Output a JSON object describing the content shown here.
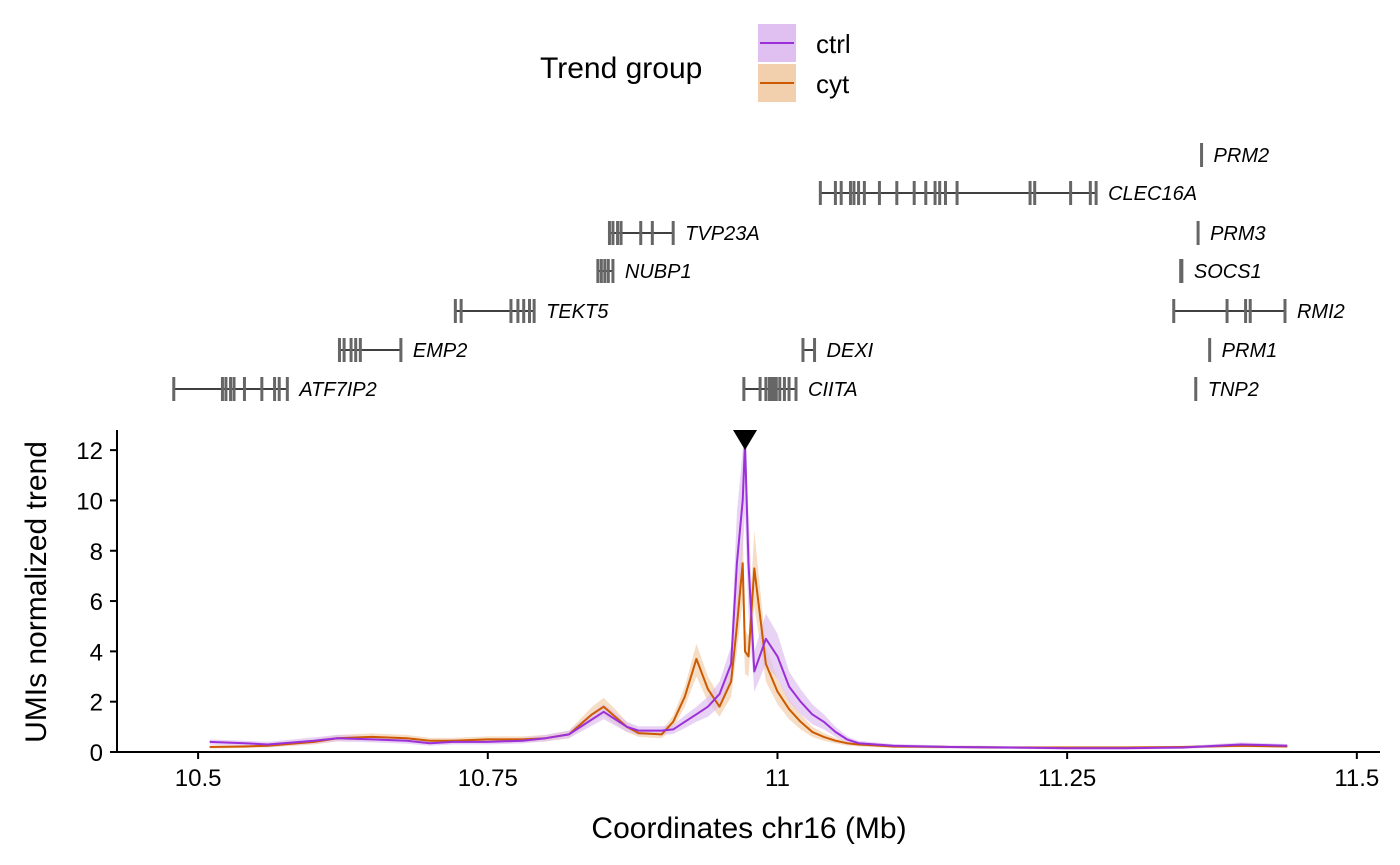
{
  "colors": {
    "ctrl_line": "#9b30d9",
    "ctrl_band": "#e0c0f0",
    "cyt_line": "#cc5a00",
    "cyt_band": "#f2cfad",
    "gene": "#666666",
    "axis": "#000000"
  },
  "legend": {
    "title": "Trend group",
    "entries": [
      {
        "label": "ctrl",
        "key": "ctrl"
      },
      {
        "label": "cyt",
        "key": "cyt"
      }
    ]
  },
  "chart_data": {
    "type": "line",
    "title": "",
    "xlabel": "Coordinates chr16 (Mb)",
    "ylabel": "UMIs normalized trend",
    "xlim": [
      10.43,
      11.52
    ],
    "ylim": [
      0,
      12.8
    ],
    "xticks": [
      10.5,
      10.75,
      11,
      11.25,
      11.5
    ],
    "xtick_labels": [
      "10.5",
      "10.75",
      "11",
      "11.25",
      "11.5"
    ],
    "yticks": [
      0,
      2,
      4,
      6,
      8,
      10,
      12
    ],
    "ytick_labels": [
      "0",
      "2",
      "4",
      "6",
      "8",
      "10",
      "12"
    ],
    "marker": {
      "x": 10.972,
      "shape": "down-triangle"
    },
    "series": [
      {
        "name": "ctrl",
        "key": "ctrl",
        "x": [
          10.51,
          10.54,
          10.56,
          10.6,
          10.62,
          10.65,
          10.68,
          10.7,
          10.72,
          10.75,
          10.78,
          10.8,
          10.82,
          10.84,
          10.85,
          10.86,
          10.87,
          10.88,
          10.9,
          10.91,
          10.92,
          10.93,
          10.94,
          10.95,
          10.96,
          10.965,
          10.97,
          10.972,
          10.975,
          10.98,
          10.99,
          11.0,
          11.01,
          11.02,
          11.03,
          11.04,
          11.05,
          11.06,
          11.07,
          11.1,
          11.15,
          11.2,
          11.25,
          11.3,
          11.35,
          11.4,
          11.44
        ],
        "values": [
          0.4,
          0.35,
          0.3,
          0.45,
          0.55,
          0.5,
          0.45,
          0.35,
          0.4,
          0.4,
          0.45,
          0.55,
          0.7,
          1.3,
          1.6,
          1.3,
          1.0,
          0.85,
          0.85,
          0.9,
          1.2,
          1.5,
          1.8,
          2.3,
          3.5,
          7.5,
          10.0,
          12.3,
          7.5,
          3.2,
          4.5,
          3.8,
          2.6,
          2.0,
          1.5,
          1.2,
          0.8,
          0.5,
          0.35,
          0.25,
          0.2,
          0.18,
          0.15,
          0.15,
          0.18,
          0.3,
          0.25
        ],
        "lower": [
          0.3,
          0.25,
          0.2,
          0.33,
          0.42,
          0.38,
          0.33,
          0.25,
          0.3,
          0.3,
          0.34,
          0.42,
          0.55,
          1.05,
          1.3,
          1.05,
          0.8,
          0.68,
          0.68,
          0.72,
          0.95,
          1.2,
          1.4,
          1.8,
          2.8,
          5.5,
          8.0,
          9.5,
          5.5,
          2.4,
          3.5,
          2.9,
          2.0,
          1.5,
          1.1,
          0.9,
          0.6,
          0.38,
          0.26,
          0.18,
          0.14,
          0.12,
          0.1,
          0.1,
          0.12,
          0.22,
          0.18
        ],
        "upper": [
          0.5,
          0.45,
          0.4,
          0.58,
          0.68,
          0.62,
          0.57,
          0.45,
          0.5,
          0.5,
          0.56,
          0.68,
          0.85,
          1.55,
          1.9,
          1.55,
          1.2,
          1.02,
          1.02,
          1.08,
          1.45,
          1.8,
          2.2,
          2.8,
          4.2,
          9.5,
          12.0,
          12.5,
          9.5,
          4.0,
          5.5,
          4.7,
          3.2,
          2.5,
          1.9,
          1.5,
          1.0,
          0.62,
          0.44,
          0.32,
          0.26,
          0.24,
          0.2,
          0.2,
          0.24,
          0.38,
          0.32
        ]
      },
      {
        "name": "cyt",
        "key": "cyt",
        "x": [
          10.51,
          10.54,
          10.56,
          10.6,
          10.62,
          10.65,
          10.68,
          10.7,
          10.72,
          10.75,
          10.78,
          10.8,
          10.82,
          10.84,
          10.85,
          10.86,
          10.87,
          10.88,
          10.9,
          10.91,
          10.92,
          10.93,
          10.94,
          10.95,
          10.96,
          10.965,
          10.97,
          10.972,
          10.975,
          10.98,
          10.99,
          11.0,
          11.01,
          11.02,
          11.03,
          11.04,
          11.05,
          11.06,
          11.07,
          11.1,
          11.15,
          11.2,
          11.25,
          11.3,
          11.35,
          11.4,
          11.44
        ],
        "values": [
          0.2,
          0.22,
          0.25,
          0.4,
          0.55,
          0.6,
          0.55,
          0.45,
          0.45,
          0.5,
          0.5,
          0.55,
          0.7,
          1.5,
          1.8,
          1.4,
          1.0,
          0.75,
          0.7,
          1.2,
          2.2,
          3.7,
          2.5,
          1.8,
          2.8,
          5.0,
          7.5,
          4.0,
          3.8,
          7.3,
          3.5,
          2.4,
          1.7,
          1.2,
          0.8,
          0.6,
          0.45,
          0.35,
          0.3,
          0.22,
          0.2,
          0.18,
          0.18,
          0.18,
          0.2,
          0.25,
          0.22
        ],
        "lower": [
          0.14,
          0.16,
          0.18,
          0.3,
          0.42,
          0.46,
          0.42,
          0.34,
          0.34,
          0.38,
          0.38,
          0.42,
          0.55,
          1.2,
          1.45,
          1.1,
          0.8,
          0.6,
          0.55,
          0.95,
          1.8,
          3.0,
          2.0,
          1.4,
          2.2,
          4.0,
          6.0,
          3.1,
          3.0,
          5.8,
          2.8,
          1.9,
          1.3,
          0.9,
          0.6,
          0.45,
          0.34,
          0.26,
          0.22,
          0.16,
          0.14,
          0.13,
          0.13,
          0.13,
          0.15,
          0.19,
          0.17
        ],
        "upper": [
          0.26,
          0.28,
          0.32,
          0.5,
          0.68,
          0.74,
          0.68,
          0.56,
          0.56,
          0.62,
          0.62,
          0.68,
          0.85,
          1.8,
          2.15,
          1.7,
          1.2,
          0.9,
          0.85,
          1.45,
          2.6,
          4.3,
          3.0,
          2.2,
          3.4,
          6.0,
          9.0,
          4.9,
          4.6,
          8.8,
          4.2,
          2.9,
          2.1,
          1.5,
          1.0,
          0.75,
          0.56,
          0.44,
          0.38,
          0.28,
          0.26,
          0.23,
          0.23,
          0.23,
          0.25,
          0.31,
          0.27
        ]
      }
    ],
    "genes": [
      {
        "name": "PRM2",
        "row": 0,
        "start": 11.366,
        "end": 11.366,
        "exons": [
          11.366
        ]
      },
      {
        "name": "CLEC16A",
        "row": 1,
        "start": 11.037,
        "end": 11.275,
        "exons": [
          11.037,
          11.05,
          11.055,
          11.063,
          11.066,
          11.07,
          11.075,
          11.088,
          11.103,
          11.118,
          11.128,
          11.136,
          11.14,
          11.145,
          11.155,
          11.218,
          11.222,
          11.253,
          11.27,
          11.275
        ]
      },
      {
        "name": "TVP23A",
        "row": 2,
        "start": 10.855,
        "end": 10.91,
        "exons": [
          10.855,
          10.858,
          10.862,
          10.865,
          10.882,
          10.892,
          10.91
        ]
      },
      {
        "name": "PRM3",
        "row": 2,
        "start": 11.363,
        "end": 11.363,
        "exons": [
          11.363
        ]
      },
      {
        "name": "NUBP1",
        "row": 3,
        "start": 10.845,
        "end": 10.858,
        "exons": [
          10.845,
          10.848,
          10.851,
          10.854,
          10.858
        ]
      },
      {
        "name": "SOCS1",
        "row": 3,
        "start": 11.348,
        "end": 11.349,
        "exons": [
          11.348,
          11.349
        ]
      },
      {
        "name": "TEKT5",
        "row": 4,
        "start": 10.722,
        "end": 10.79,
        "exons": [
          10.722,
          10.727,
          10.77,
          10.776,
          10.781,
          10.786,
          10.79
        ]
      },
      {
        "name": "RMI2",
        "row": 4,
        "start": 11.342,
        "end": 11.438,
        "exons": [
          11.342,
          11.388,
          11.404,
          11.408,
          11.438
        ]
      },
      {
        "name": "EMP2",
        "row": 5,
        "start": 10.622,
        "end": 10.675,
        "exons": [
          10.622,
          10.626,
          10.632,
          10.636,
          10.64,
          10.675
        ]
      },
      {
        "name": "DEXI",
        "row": 5,
        "start": 11.022,
        "end": 11.032,
        "exons": [
          11.022,
          11.032
        ]
      },
      {
        "name": "PRM1",
        "row": 5,
        "start": 11.373,
        "end": 11.373,
        "exons": [
          11.373
        ]
      },
      {
        "name": "ATF7IP2",
        "row": 6,
        "start": 10.479,
        "end": 10.577,
        "exons": [
          10.479,
          10.521,
          10.524,
          10.528,
          10.531,
          10.54,
          10.555,
          10.566,
          10.57,
          10.577
        ]
      },
      {
        "name": "CIITA",
        "row": 6,
        "start": 10.971,
        "end": 11.016,
        "exons": [
          10.971,
          10.985,
          10.99,
          10.993,
          10.995,
          10.997,
          10.999,
          11.002,
          11.006,
          11.01,
          11.016
        ]
      },
      {
        "name": "TNP2",
        "row": 6,
        "start": 11.361,
        "end": 11.361,
        "exons": [
          11.361
        ]
      }
    ]
  }
}
